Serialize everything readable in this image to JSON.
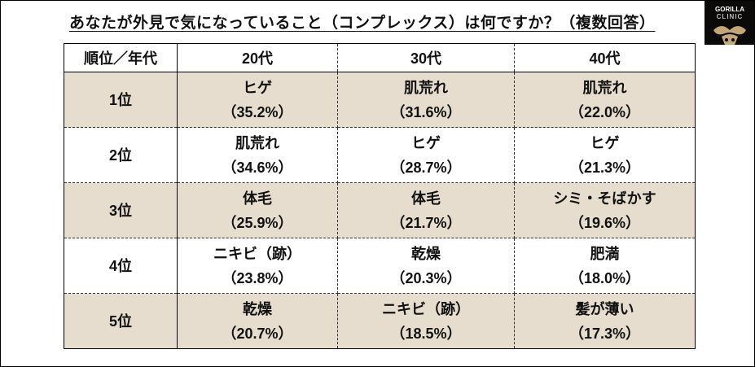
{
  "title": "あなたが外見で気になっていること（コンプレックス）は何ですか？（複数回答）",
  "logo": {
    "line1": "GORILLA",
    "line2": "CLINIC"
  },
  "headers": [
    "順位／年代",
    "20代",
    "30代",
    "40代"
  ],
  "rows": [
    {
      "rank": "1位",
      "cells": [
        {
          "item": "ヒゲ",
          "pct": "（35.2%）"
        },
        {
          "item": "肌荒れ",
          "pct": "（31.6%）"
        },
        {
          "item": "肌荒れ",
          "pct": "（22.0%）"
        }
      ]
    },
    {
      "rank": "2位",
      "cells": [
        {
          "item": "肌荒れ",
          "pct": "（34.6%）"
        },
        {
          "item": "ヒゲ",
          "pct": "（28.7%）"
        },
        {
          "item": "ヒゲ",
          "pct": "（21.3%）"
        }
      ]
    },
    {
      "rank": "3位",
      "cells": [
        {
          "item": "体毛",
          "pct": "（25.9%）"
        },
        {
          "item": "体毛",
          "pct": "（21.7%）"
        },
        {
          "item": "シミ・そばかす",
          "pct": "（19.6%）"
        }
      ]
    },
    {
      "rank": "4位",
      "cells": [
        {
          "item": "ニキビ（跡）",
          "pct": "（23.8%）"
        },
        {
          "item": "乾燥",
          "pct": "（20.3%）"
        },
        {
          "item": "肥満",
          "pct": "（18.0%）"
        }
      ]
    },
    {
      "rank": "5位",
      "cells": [
        {
          "item": "乾燥",
          "pct": "（20.7%）"
        },
        {
          "item": "ニキビ（跡）",
          "pct": "（18.5%）"
        },
        {
          "item": "髪が薄い",
          "pct": "（17.3%）"
        }
      ]
    }
  ]
}
